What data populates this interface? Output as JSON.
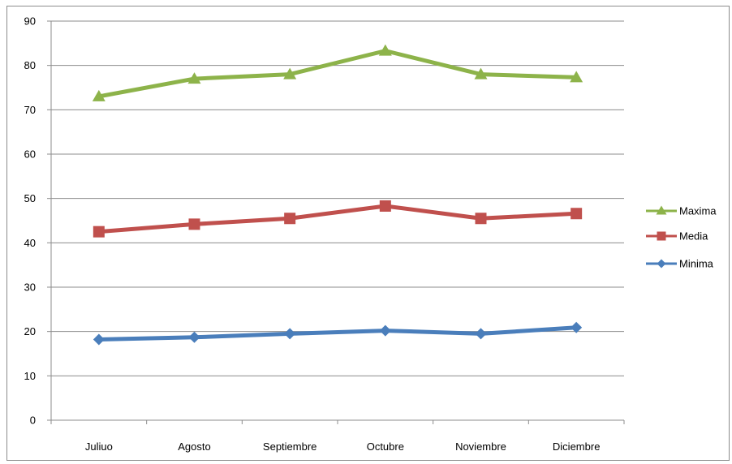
{
  "chart_data": {
    "type": "line",
    "title": "",
    "xlabel": "",
    "ylabel": "",
    "categories": [
      "Juliuo",
      "Agosto",
      "Septiembre",
      "Octubre",
      "Noviembre",
      "Diciembre"
    ],
    "ylim": [
      0,
      90
    ],
    "yticks": [
      0,
      10,
      20,
      30,
      40,
      50,
      60,
      70,
      80,
      90
    ],
    "grid": true,
    "legend_position": "right",
    "series": [
      {
        "name": "Maxima",
        "color": "#8db34a",
        "marker": "triangle",
        "values": [
          73,
          77,
          78,
          83.3,
          78,
          77.3
        ]
      },
      {
        "name": "Media",
        "color": "#c0504d",
        "marker": "square",
        "values": [
          42.5,
          44.2,
          45.5,
          48.3,
          45.5,
          46.6
        ]
      },
      {
        "name": "Minima",
        "color": "#4a7ebb",
        "marker": "diamond",
        "values": [
          18.2,
          18.7,
          19.5,
          20.2,
          19.5,
          20.9
        ]
      }
    ]
  }
}
